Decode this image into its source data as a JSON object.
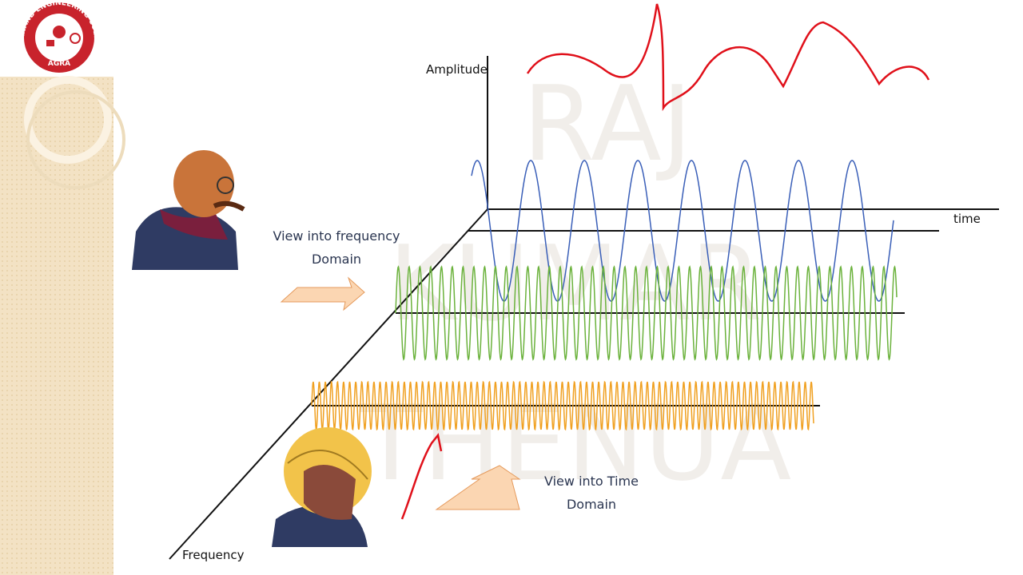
{
  "logo": {
    "name": "ANAND ENGINEERING COLLEGE",
    "city": "AGRA"
  },
  "watermark": [
    "RAJ",
    "KUMAR",
    "THENUA"
  ],
  "diagram": {
    "amplitude_label": "Amplitude",
    "time_label": "time",
    "frequency_label": "Frequency",
    "frequency_view": [
      "View into frequency",
      "Domain"
    ],
    "time_view": [
      "View into Time",
      "Domain"
    ]
  }
}
